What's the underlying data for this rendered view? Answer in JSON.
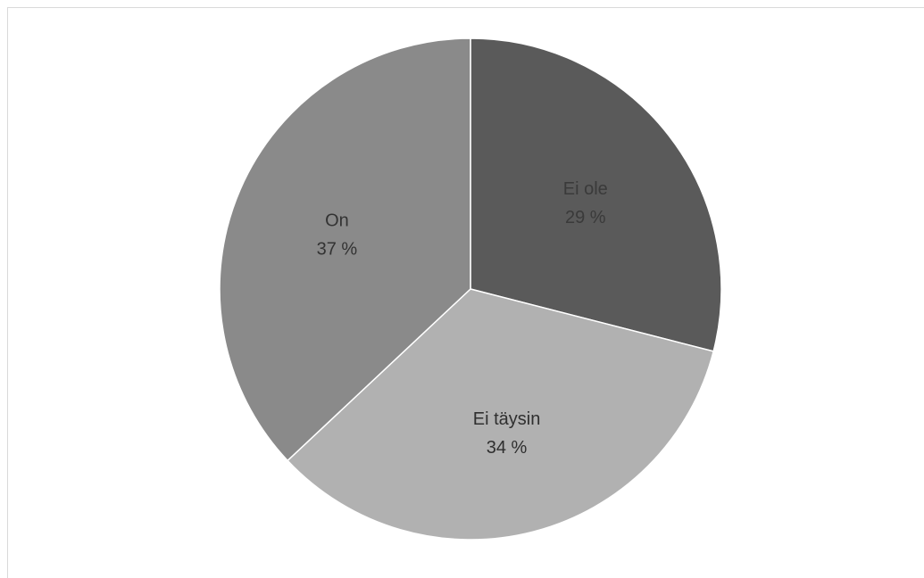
{
  "chart_data": {
    "type": "pie",
    "title": "",
    "start_angle_deg": 0,
    "direction": "clockwise",
    "slices": [
      {
        "label": "Ei ole",
        "value": 29,
        "value_label": "29 %",
        "color": "#5a5a5a",
        "label_color": "#3a3a3a"
      },
      {
        "label": "Ei täysin",
        "value": 34,
        "value_label": "34 %",
        "color": "#b1b1b1",
        "label_color": "#2f2f2f"
      },
      {
        "label": "On",
        "value": 37,
        "value_label": "37 %",
        "color": "#8a8a8a",
        "label_color": "#333333"
      }
    ],
    "legend": "none"
  }
}
